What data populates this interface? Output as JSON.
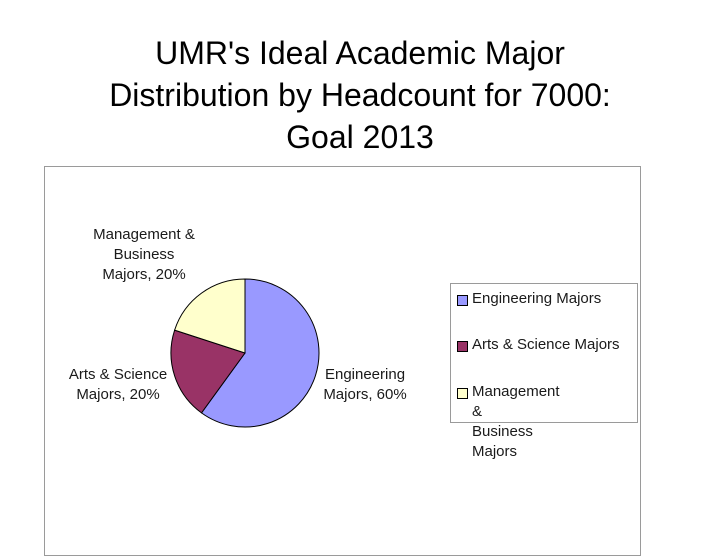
{
  "title": {
    "lines": [
      "UMR's Ideal Academic Major",
      "Distribution by Headcount for 7000:",
      "Goal 2013"
    ]
  },
  "chart_data": {
    "type": "pie",
    "title": "UMR's Ideal Academic Major Distribution by Headcount for 7000: Goal 2013",
    "categories": [
      "Engineering Majors",
      "Arts & Science Majors",
      "Management & Business Majors"
    ],
    "values": [
      60,
      20,
      20
    ],
    "unit": "%",
    "colors": [
      "#9999ff",
      "#993366",
      "#ffffcc"
    ],
    "data_labels": [
      "Engineering\nMajors, 60%",
      "Arts & Science\nMajors, 20%",
      "Management &\nBusiness\nMajors, 20%"
    ],
    "legend": {
      "placement": "right",
      "entries": [
        "Engineering Majors",
        "Arts & Science Majors",
        "Management &\nBusiness Majors"
      ]
    }
  }
}
